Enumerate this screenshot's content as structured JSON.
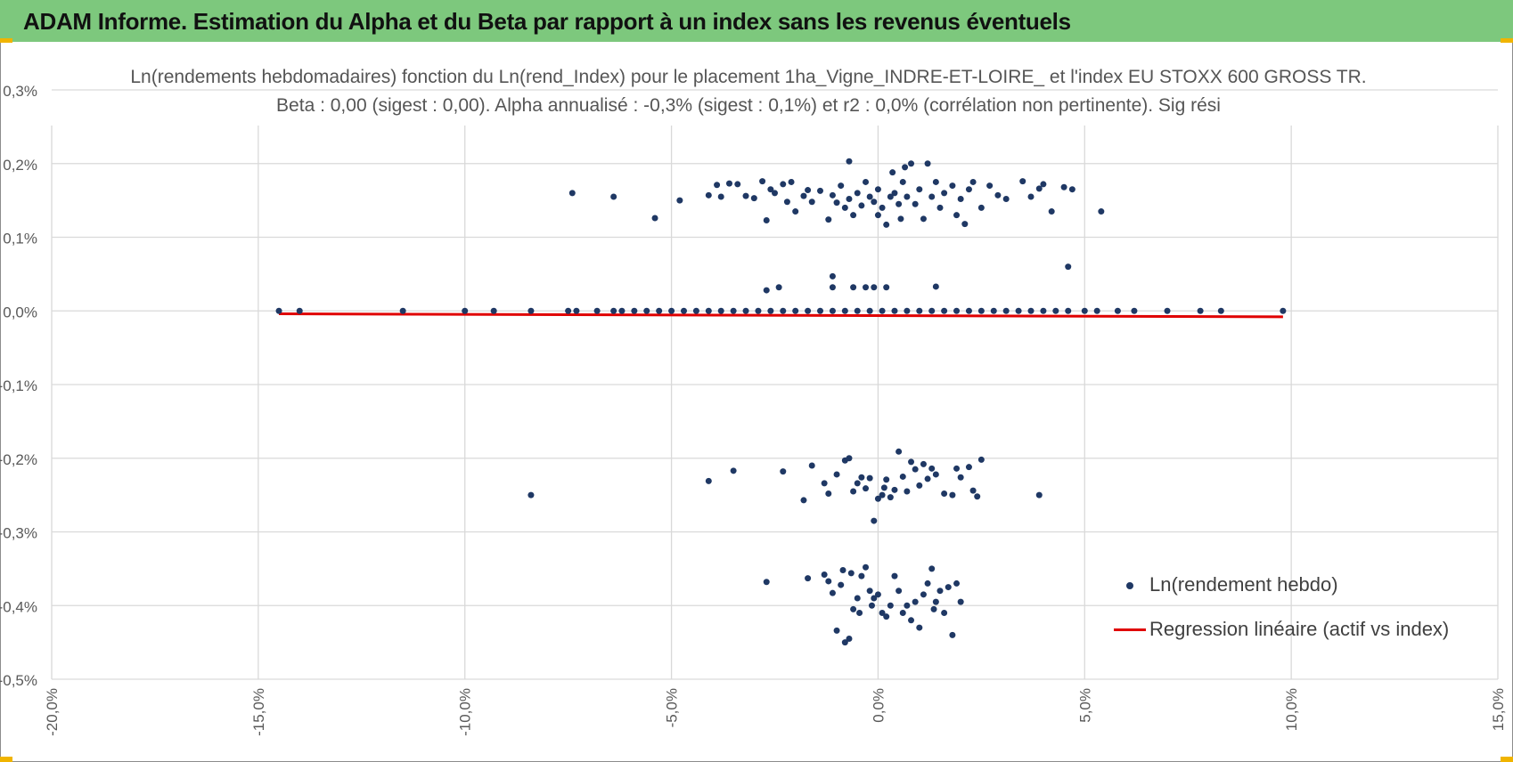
{
  "header": {
    "title": "ADAM Informe. Estimation du Alpha et du Beta par rapport à un index sans les revenus éventuels"
  },
  "colors": {
    "header_bg": "#7dc87d",
    "corner_accent": "#f0b400",
    "points": "#1f3864",
    "regression": "#e00000",
    "grid": "#d9d9d9"
  },
  "chart_data": {
    "type": "scatter",
    "title": "Ln(rendements hebdomadaires) fonction du Ln(rend_Index) pour le placement 1ha_Vigne_INDRE-ET-LOIRE_ et l'index EU STOXX 600 GROSS TR.",
    "subtitle": "Beta : 0,00 (sigest : 0,00). Alpha annualisé : -0,3% (sigest : 0,1%) et r2 : 0,0% (corrélation non pertinente). Sig rési",
    "xlabel": "",
    "ylabel": "",
    "xlim": [
      -20,
      15
    ],
    "ylim": [
      -0.5,
      0.3
    ],
    "x_ticks": [
      -20,
      -15,
      -10,
      -5,
      0,
      5,
      10,
      15
    ],
    "x_tick_labels": [
      "-20,0%",
      "-15,0%",
      "-10,0%",
      "-5,0%",
      "0,0%",
      "5,0%",
      "10,0%",
      "15,0%"
    ],
    "y_ticks": [
      0.3,
      0.2,
      0.1,
      0.0,
      -0.1,
      -0.2,
      -0.3,
      -0.4,
      -0.5
    ],
    "y_tick_labels": [
      "0,3%",
      "0,2%",
      "0,1%",
      "0,0%",
      "-0,1%",
      "-0,2%",
      "-0,3%",
      "-0,4%",
      "-0,5%"
    ],
    "grid": true,
    "legend_position": "bottom-right",
    "series": [
      {
        "name": "Ln(rendement hebdo)",
        "kind": "scatter",
        "points": [
          [
            -14.5,
            0.0
          ],
          [
            -14.0,
            0.0
          ],
          [
            -11.5,
            0.0
          ],
          [
            -10.0,
            0.0
          ],
          [
            -9.3,
            0.0
          ],
          [
            -8.4,
            0.0
          ],
          [
            -7.5,
            0.0
          ],
          [
            -7.3,
            0.0
          ],
          [
            -6.8,
            0.0
          ],
          [
            -6.4,
            0.0
          ],
          [
            -6.2,
            0.0
          ],
          [
            -5.9,
            0.0
          ],
          [
            -5.6,
            0.0
          ],
          [
            -5.3,
            0.0
          ],
          [
            -5.0,
            0.0
          ],
          [
            -4.7,
            0.0
          ],
          [
            -4.4,
            0.0
          ],
          [
            -4.1,
            0.0
          ],
          [
            -3.8,
            0.0
          ],
          [
            -3.5,
            0.0
          ],
          [
            -3.2,
            0.0
          ],
          [
            -2.9,
            0.0
          ],
          [
            -2.6,
            0.0
          ],
          [
            -2.3,
            0.0
          ],
          [
            -2.0,
            0.0
          ],
          [
            -1.7,
            0.0
          ],
          [
            -1.4,
            0.0
          ],
          [
            -1.1,
            0.0
          ],
          [
            -0.8,
            0.0
          ],
          [
            -0.5,
            0.0
          ],
          [
            -0.2,
            0.0
          ],
          [
            0.1,
            0.0
          ],
          [
            0.4,
            0.0
          ],
          [
            0.7,
            0.0
          ],
          [
            1.0,
            0.0
          ],
          [
            1.3,
            0.0
          ],
          [
            1.6,
            0.0
          ],
          [
            1.9,
            0.0
          ],
          [
            2.2,
            0.0
          ],
          [
            2.5,
            0.0
          ],
          [
            2.8,
            0.0
          ],
          [
            3.1,
            0.0
          ],
          [
            3.4,
            0.0
          ],
          [
            3.7,
            0.0
          ],
          [
            4.0,
            0.0
          ],
          [
            4.3,
            0.0
          ],
          [
            4.6,
            0.0
          ],
          [
            5.0,
            0.0
          ],
          [
            5.3,
            0.0
          ],
          [
            5.8,
            0.0
          ],
          [
            6.2,
            0.0
          ],
          [
            7.0,
            0.0
          ],
          [
            7.8,
            0.0
          ],
          [
            8.3,
            0.0
          ],
          [
            9.8,
            0.0
          ],
          [
            -2.7,
            0.028
          ],
          [
            -2.4,
            0.032
          ],
          [
            -1.1,
            0.047
          ],
          [
            -1.1,
            0.032
          ],
          [
            -0.6,
            0.032
          ],
          [
            -0.3,
            0.032
          ],
          [
            -0.1,
            0.032
          ],
          [
            0.2,
            0.032
          ],
          [
            1.4,
            0.033
          ],
          [
            4.6,
            0.06
          ],
          [
            -7.4,
            0.16
          ],
          [
            -6.4,
            0.155
          ],
          [
            -5.4,
            0.126
          ],
          [
            -4.8,
            0.15
          ],
          [
            -4.1,
            0.157
          ],
          [
            -3.9,
            0.171
          ],
          [
            -3.8,
            0.155
          ],
          [
            -3.6,
            0.173
          ],
          [
            -3.4,
            0.172
          ],
          [
            -3.2,
            0.156
          ],
          [
            -3.0,
            0.153
          ],
          [
            -2.8,
            0.176
          ],
          [
            -2.7,
            0.123
          ],
          [
            -2.6,
            0.165
          ],
          [
            -2.5,
            0.16
          ],
          [
            -2.3,
            0.172
          ],
          [
            -2.2,
            0.148
          ],
          [
            -2.1,
            0.175
          ],
          [
            -2.0,
            0.135
          ],
          [
            -1.8,
            0.156
          ],
          [
            -1.7,
            0.164
          ],
          [
            -1.6,
            0.148
          ],
          [
            -1.4,
            0.163
          ],
          [
            -1.2,
            0.124
          ],
          [
            -1.1,
            0.157
          ],
          [
            -1.0,
            0.147
          ],
          [
            -0.9,
            0.17
          ],
          [
            -0.8,
            0.14
          ],
          [
            -0.7,
            0.203
          ],
          [
            -0.7,
            0.152
          ],
          [
            -0.6,
            0.13
          ],
          [
            -0.5,
            0.16
          ],
          [
            -0.4,
            0.143
          ],
          [
            -0.3,
            0.175
          ],
          [
            -0.2,
            0.155
          ],
          [
            -0.1,
            0.148
          ],
          [
            0.0,
            0.13
          ],
          [
            0.0,
            0.165
          ],
          [
            0.1,
            0.14
          ],
          [
            0.2,
            0.117
          ],
          [
            0.3,
            0.155
          ],
          [
            0.35,
            0.188
          ],
          [
            0.4,
            0.16
          ],
          [
            0.5,
            0.145
          ],
          [
            0.55,
            0.125
          ],
          [
            0.6,
            0.175
          ],
          [
            0.65,
            0.195
          ],
          [
            0.7,
            0.155
          ],
          [
            0.8,
            0.2
          ],
          [
            0.9,
            0.145
          ],
          [
            1.0,
            0.165
          ],
          [
            1.1,
            0.125
          ],
          [
            1.2,
            0.2
          ],
          [
            1.3,
            0.155
          ],
          [
            1.4,
            0.175
          ],
          [
            1.5,
            0.14
          ],
          [
            1.6,
            0.16
          ],
          [
            1.8,
            0.17
          ],
          [
            1.9,
            0.13
          ],
          [
            2.0,
            0.152
          ],
          [
            2.1,
            0.118
          ],
          [
            2.2,
            0.165
          ],
          [
            2.3,
            0.175
          ],
          [
            2.5,
            0.14
          ],
          [
            2.7,
            0.17
          ],
          [
            2.9,
            0.157
          ],
          [
            3.1,
            0.152
          ],
          [
            3.5,
            0.176
          ],
          [
            3.7,
            0.155
          ],
          [
            3.9,
            0.166
          ],
          [
            4.0,
            0.172
          ],
          [
            4.2,
            0.135
          ],
          [
            4.5,
            0.168
          ],
          [
            4.7,
            0.165
          ],
          [
            5.4,
            0.135
          ],
          [
            -8.4,
            -0.25
          ],
          [
            -4.1,
            -0.231
          ],
          [
            -3.5,
            -0.217
          ],
          [
            -2.3,
            -0.218
          ],
          [
            -1.8,
            -0.257
          ],
          [
            -1.6,
            -0.21
          ],
          [
            -1.3,
            -0.234
          ],
          [
            -1.2,
            -0.248
          ],
          [
            -1.0,
            -0.222
          ],
          [
            -0.8,
            -0.203
          ],
          [
            -0.7,
            -0.2
          ],
          [
            -0.6,
            -0.245
          ],
          [
            -0.5,
            -0.234
          ],
          [
            -0.4,
            -0.226
          ],
          [
            -0.3,
            -0.241
          ],
          [
            -0.2,
            -0.227
          ],
          [
            -0.1,
            -0.285
          ],
          [
            0.0,
            -0.255
          ],
          [
            0.1,
            -0.25
          ],
          [
            0.15,
            -0.24
          ],
          [
            0.2,
            -0.229
          ],
          [
            0.3,
            -0.253
          ],
          [
            0.4,
            -0.243
          ],
          [
            0.5,
            -0.191
          ],
          [
            0.6,
            -0.225
          ],
          [
            0.7,
            -0.245
          ],
          [
            0.8,
            -0.205
          ],
          [
            0.9,
            -0.215
          ],
          [
            1.0,
            -0.237
          ],
          [
            1.1,
            -0.208
          ],
          [
            1.2,
            -0.228
          ],
          [
            1.3,
            -0.214
          ],
          [
            1.4,
            -0.222
          ],
          [
            1.6,
            -0.248
          ],
          [
            1.8,
            -0.25
          ],
          [
            1.9,
            -0.214
          ],
          [
            2.0,
            -0.226
          ],
          [
            2.2,
            -0.212
          ],
          [
            2.3,
            -0.244
          ],
          [
            2.4,
            -0.252
          ],
          [
            2.5,
            -0.202
          ],
          [
            3.9,
            -0.25
          ],
          [
            -2.7,
            -0.368
          ],
          [
            -1.7,
            -0.363
          ],
          [
            -1.3,
            -0.358
          ],
          [
            -1.2,
            -0.367
          ],
          [
            -1.1,
            -0.383
          ],
          [
            -1.0,
            -0.434
          ],
          [
            -0.9,
            -0.372
          ],
          [
            -0.85,
            -0.352
          ],
          [
            -0.8,
            -0.45
          ],
          [
            -0.7,
            -0.445
          ],
          [
            -0.65,
            -0.356
          ],
          [
            -0.6,
            -0.405
          ],
          [
            -0.5,
            -0.39
          ],
          [
            -0.45,
            -0.41
          ],
          [
            -0.4,
            -0.36
          ],
          [
            -0.3,
            -0.348
          ],
          [
            -0.2,
            -0.38
          ],
          [
            -0.15,
            -0.4
          ],
          [
            -0.1,
            -0.39
          ],
          [
            0.0,
            -0.385
          ],
          [
            0.1,
            -0.41
          ],
          [
            0.2,
            -0.415
          ],
          [
            0.3,
            -0.4
          ],
          [
            0.4,
            -0.36
          ],
          [
            0.5,
            -0.38
          ],
          [
            0.6,
            -0.41
          ],
          [
            0.7,
            -0.4
          ],
          [
            0.8,
            -0.42
          ],
          [
            0.9,
            -0.395
          ],
          [
            1.0,
            -0.43
          ],
          [
            1.1,
            -0.385
          ],
          [
            1.2,
            -0.37
          ],
          [
            1.3,
            -0.35
          ],
          [
            1.35,
            -0.405
          ],
          [
            1.4,
            -0.395
          ],
          [
            1.5,
            -0.38
          ],
          [
            1.6,
            -0.41
          ],
          [
            1.7,
            -0.375
          ],
          [
            1.8,
            -0.44
          ],
          [
            1.9,
            -0.37
          ],
          [
            2.0,
            -0.395
          ]
        ]
      },
      {
        "name": "Regression linéaire (actif vs index)",
        "kind": "line",
        "points": [
          [
            -14.5,
            -0.004
          ],
          [
            9.8,
            -0.008
          ]
        ]
      }
    ]
  }
}
